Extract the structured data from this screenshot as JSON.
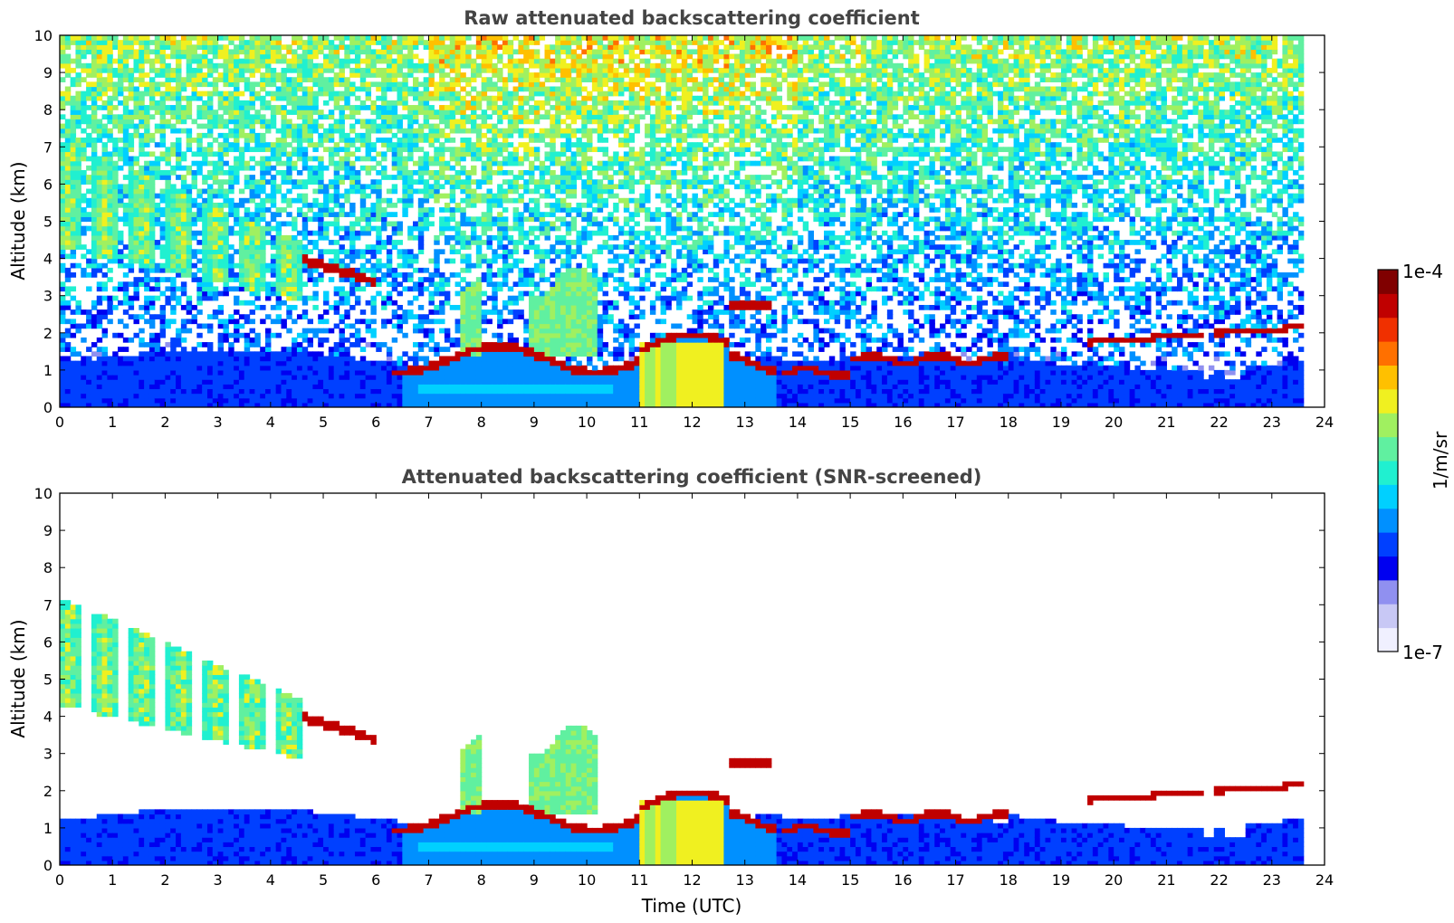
{
  "chart_data": [
    {
      "type": "heatmap",
      "title": "Raw attenuated backscattering coefficient",
      "xlabel": "",
      "ylabel": "Altitude (km)",
      "xlim": [
        0,
        24
      ],
      "ylim": [
        0,
        10
      ],
      "xticks": [
        "0",
        "1",
        "2",
        "3",
        "4",
        "5",
        "6",
        "7",
        "8",
        "9",
        "10",
        "11",
        "12",
        "13",
        "14",
        "15",
        "16",
        "17",
        "18",
        "19",
        "20",
        "21",
        "22",
        "23",
        "24"
      ],
      "yticks": [
        "0",
        "1",
        "2",
        "3",
        "4",
        "5",
        "6",
        "7",
        "8",
        "9",
        "10"
      ],
      "data_end_time": 23.65,
      "features": [
        {
          "kind": "cirrus",
          "t": [
            0,
            4.6
          ],
          "alt": [
            4.0,
            7.5
          ]
        },
        {
          "kind": "cloud-layer",
          "t": [
            4.6,
            6.0
          ],
          "alt": [
            3.3,
            4.0
          ]
        },
        {
          "kind": "boundary-layer",
          "t": [
            0,
            23.65
          ],
          "alt": [
            0,
            1.5
          ]
        },
        {
          "kind": "low-cloud",
          "t": [
            6.3,
            14.0
          ],
          "alt": [
            1.2,
            2.0
          ]
        },
        {
          "kind": "precipitation",
          "t": [
            11.0,
            12.6
          ],
          "alt": [
            0,
            1.8
          ]
        },
        {
          "kind": "low-cloud",
          "t": [
            13.7,
            18.0
          ],
          "alt": [
            0.8,
            1.5
          ]
        },
        {
          "kind": "low-cloud",
          "t": [
            19.5,
            23.65
          ],
          "alt": [
            1.8,
            2.2
          ]
        }
      ]
    },
    {
      "type": "heatmap",
      "title": "Attenuated backscattering coefficient (SNR-screened)",
      "xlabel": "Time (UTC)",
      "ylabel": "Altitude (km)",
      "xlim": [
        0,
        24
      ],
      "ylim": [
        0,
        10
      ],
      "xticks": [
        "0",
        "1",
        "2",
        "3",
        "4",
        "5",
        "6",
        "7",
        "8",
        "9",
        "10",
        "11",
        "12",
        "13",
        "14",
        "15",
        "16",
        "17",
        "18",
        "19",
        "20",
        "21",
        "22",
        "23",
        "24"
      ],
      "yticks": [
        "0",
        "1",
        "2",
        "3",
        "4",
        "5",
        "6",
        "7",
        "8",
        "9",
        "10"
      ],
      "data_end_time": 23.65,
      "screened": true
    }
  ],
  "colorbar": {
    "max_label": "1e-4",
    "min_label": "1e-7",
    "unit_label": "1/m/sr",
    "scale": "log",
    "colormap": [
      "#f0f0ff",
      "#c8c8f5",
      "#9090f0",
      "#0000f0",
      "#0040ff",
      "#0090ff",
      "#00d0ff",
      "#20f0d0",
      "#60f0a0",
      "#a0f060",
      "#f0f020",
      "#ffc000",
      "#ff7000",
      "#f03000",
      "#c00000",
      "#800000"
    ]
  }
}
